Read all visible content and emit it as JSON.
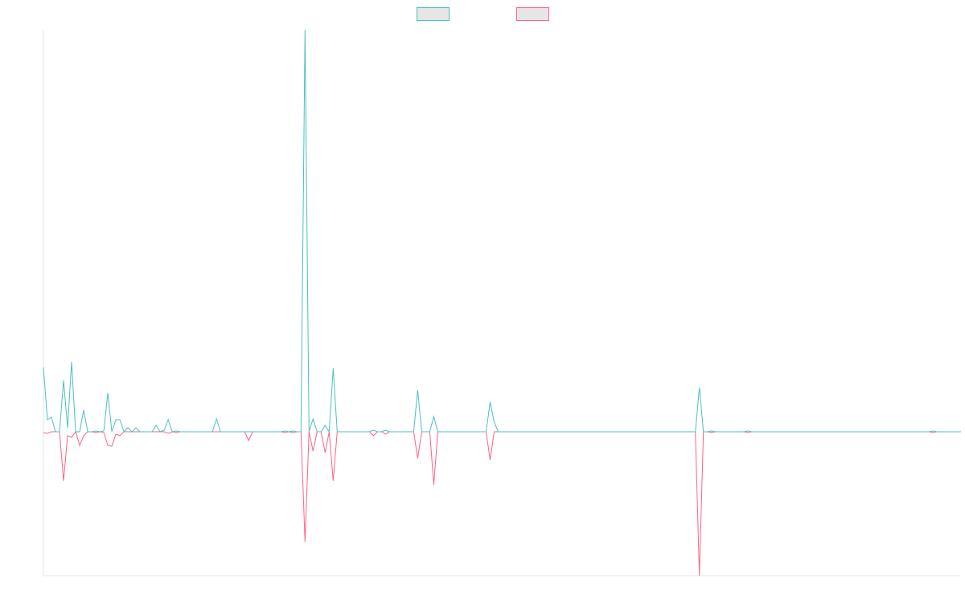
{
  "chart_data": {
    "type": "line",
    "legend": "top",
    "ylim": [
      -179,
      500
    ],
    "series": [
      {
        "color": "#4bc0c0",
        "values": [
          80,
          15,
          18,
          0,
          0,
          64,
          5,
          87,
          0,
          0,
          27,
          0,
          0,
          1,
          0,
          1,
          48,
          0,
          15,
          15,
          0,
          5,
          0,
          5,
          0,
          0,
          0,
          0,
          8,
          0,
          2,
          15,
          0,
          1,
          0,
          0,
          0,
          0,
          0,
          0,
          0,
          0,
          0,
          16,
          0,
          0,
          0,
          0,
          0,
          0,
          0,
          0,
          0,
          0,
          0,
          0,
          0,
          0,
          0,
          0,
          1,
          0,
          1,
          0,
          0,
          500,
          0,
          16,
          0,
          0,
          8,
          0,
          79,
          0,
          0,
          0,
          0,
          0,
          0,
          0,
          0,
          0,
          2,
          0,
          0,
          2,
          0,
          0,
          0,
          0,
          0,
          0,
          0,
          52,
          0,
          0,
          0,
          19,
          0,
          0,
          0,
          0,
          0,
          0,
          0,
          0,
          0,
          0,
          0,
          0,
          0,
          37,
          12,
          0,
          0,
          0,
          0,
          0,
          0,
          0,
          0,
          0,
          0,
          0,
          0,
          0,
          0,
          0,
          0,
          0,
          0,
          0,
          0,
          0,
          0,
          0,
          0,
          0,
          0,
          0,
          0,
          0,
          0,
          0,
          0,
          0,
          0,
          0,
          0,
          0,
          0,
          0,
          0,
          0,
          0,
          0,
          0,
          0,
          0,
          0,
          0,
          0,
          0,
          55,
          0,
          0,
          1,
          0,
          0,
          0,
          0,
          0,
          0,
          0,
          0,
          1,
          0,
          0,
          0,
          0,
          0,
          0,
          0,
          0,
          0,
          0,
          0,
          0,
          0,
          0,
          0,
          0,
          0,
          0,
          0,
          0,
          0,
          0,
          0,
          0,
          0,
          0,
          0,
          0,
          0,
          0,
          0,
          0,
          0,
          0,
          0,
          0,
          0,
          0,
          0,
          0,
          0,
          0,
          0,
          0,
          0,
          1,
          0,
          0,
          0,
          0,
          0,
          0,
          0
        ]
      },
      {
        "color": "#ff6384",
        "values": [
          -1,
          -2,
          0,
          0,
          0,
          -61,
          -5,
          -7,
          0,
          -17,
          -5,
          0,
          0,
          -1,
          0,
          -1,
          -17,
          -18,
          -3,
          -5,
          0,
          0,
          0,
          0,
          0,
          0,
          0,
          0,
          0,
          0,
          0,
          -2,
          0,
          -1,
          0,
          0,
          0,
          0,
          0,
          0,
          0,
          0,
          0,
          0,
          0,
          0,
          0,
          0,
          0,
          0,
          0,
          -11,
          0,
          0,
          0,
          0,
          0,
          0,
          0,
          0,
          -1,
          0,
          -1,
          0,
          0,
          -137,
          0,
          -24,
          0,
          0,
          -26,
          0,
          -61,
          0,
          0,
          0,
          0,
          0,
          0,
          0,
          0,
          0,
          -5,
          0,
          0,
          -3,
          0,
          0,
          0,
          0,
          0,
          0,
          0,
          -33,
          0,
          0,
          0,
          -66,
          0,
          0,
          0,
          0,
          0,
          0,
          0,
          0,
          0,
          0,
          0,
          0,
          0,
          -35,
          0,
          0,
          0,
          0,
          0,
          0,
          0,
          0,
          0,
          0,
          0,
          0,
          0,
          0,
          0,
          0,
          0,
          0,
          0,
          0,
          0,
          0,
          0,
          0,
          0,
          0,
          0,
          0,
          0,
          0,
          0,
          0,
          0,
          0,
          0,
          0,
          0,
          0,
          0,
          0,
          0,
          0,
          0,
          0,
          0,
          0,
          0,
          0,
          0,
          0,
          0,
          -179,
          0,
          0,
          -1,
          0,
          0,
          0,
          0,
          0,
          0,
          0,
          0,
          -1,
          0,
          0,
          0,
          0,
          0,
          0,
          0,
          0,
          0,
          0,
          0,
          0,
          0,
          0,
          0,
          0,
          0,
          0,
          0,
          0,
          0,
          0,
          0,
          0,
          0,
          0,
          0,
          0,
          0,
          0,
          0,
          0,
          0,
          0,
          0,
          0,
          0,
          0,
          0,
          0,
          0,
          0,
          0,
          0,
          0,
          -1,
          0,
          0,
          0,
          0,
          0,
          0,
          0
        ]
      }
    ]
  }
}
